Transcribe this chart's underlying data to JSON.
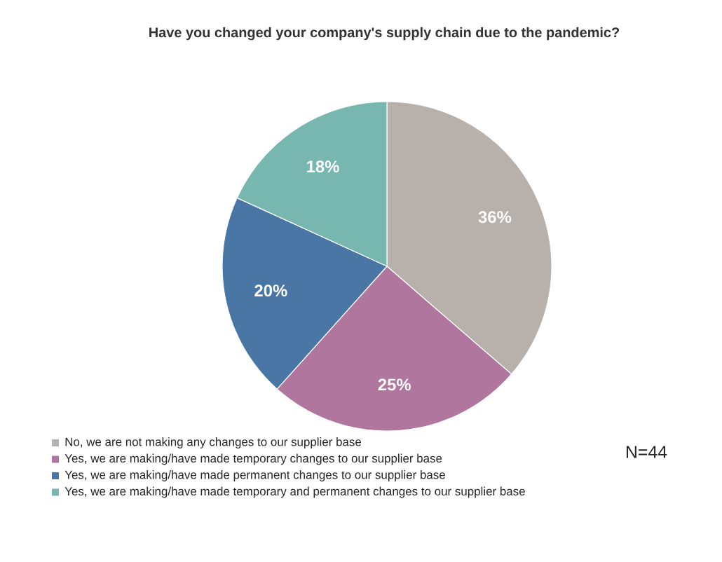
{
  "chart_data": {
    "type": "pie",
    "title": "Have you changed your company's supply chain due to the pandemic?",
    "categories": [
      "No, we are not making any changes to our supplier base",
      "Yes, we are making/have made temporary changes to our supplier base",
      "Yes, we are making/have made permanent changes to our supplier base",
      "Yes, we are making/have made temporary and permanent changes to our supplier base"
    ],
    "values": [
      36,
      25,
      20,
      18
    ],
    "value_labels": [
      "36%",
      "25%",
      "20%",
      "18%"
    ],
    "colors": [
      "#b8b0ab",
      "#b0769e",
      "#4a76a6",
      "#78b6b0"
    ],
    "legend": "bottom",
    "annotations": [
      "N=44"
    ]
  }
}
